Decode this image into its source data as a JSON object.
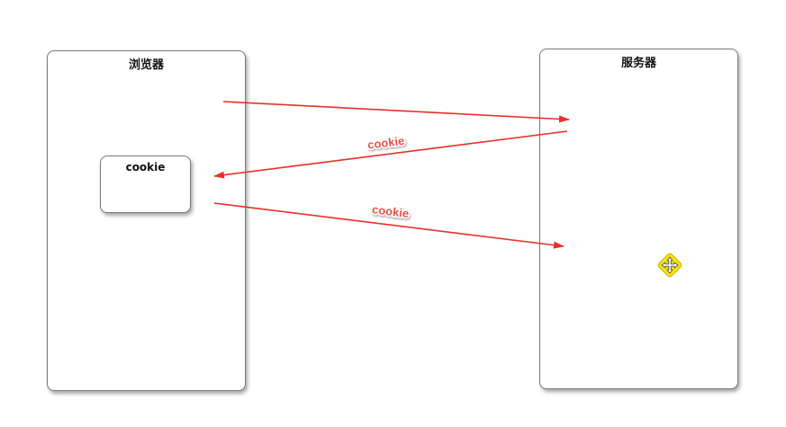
{
  "diagram": {
    "browser": {
      "title": "浏览器"
    },
    "server": {
      "title": "服务器"
    },
    "cookie_box": {
      "label": "cookie"
    },
    "arrows": [
      {
        "from": "browser",
        "to": "server",
        "label": ""
      },
      {
        "from": "server",
        "to": "browser",
        "label": "cookie"
      },
      {
        "from": "browser",
        "to": "server",
        "label": "cookie"
      }
    ],
    "colors": {
      "arrow": "#e8302a",
      "label": "#e8463a",
      "cursor_bg": "#f5e40a"
    },
    "cursor_icon": "move-cursor-icon"
  }
}
